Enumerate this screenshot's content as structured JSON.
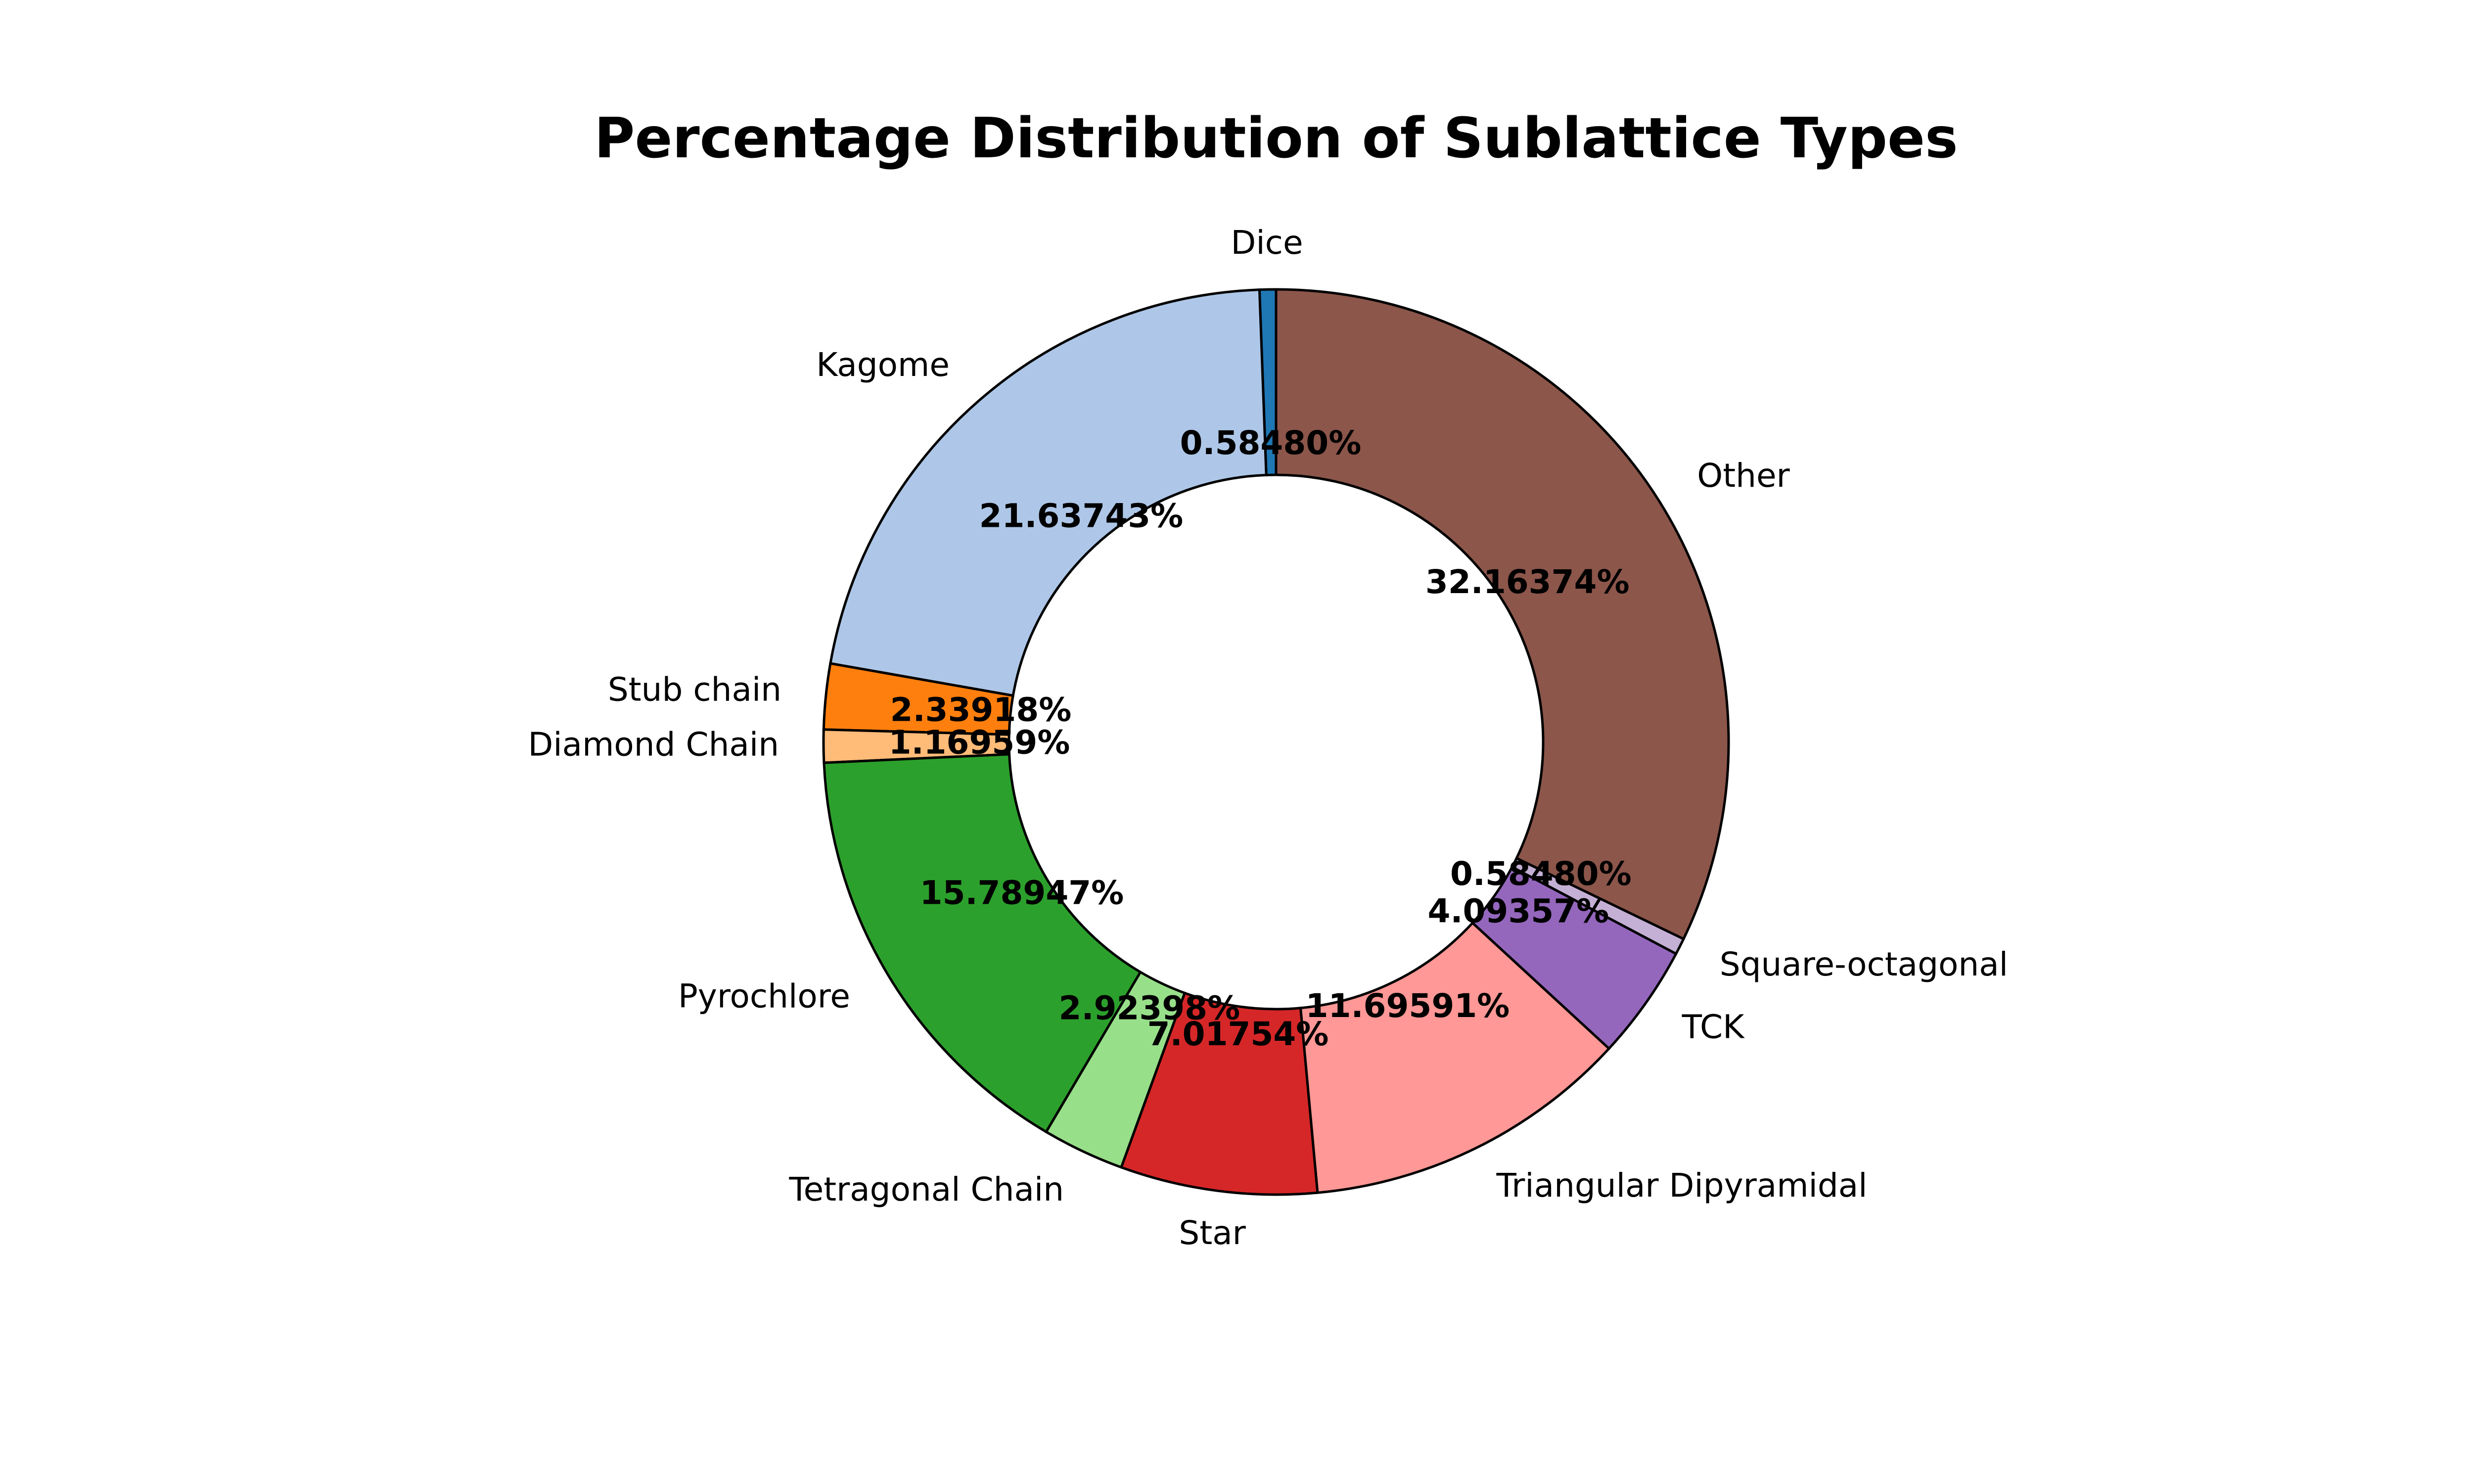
{
  "chart_data": {
    "type": "pie",
    "style": "donut",
    "title": "Percentage Distribution of Sublattice Types",
    "start_angle_deg": 90,
    "direction": "counterclockwise",
    "slices": [
      {
        "label": "Dice",
        "value": 0.5848,
        "pct_label": "0.58480%",
        "color": "#1f77b4"
      },
      {
        "label": "Kagome",
        "value": 21.63743,
        "pct_label": "21.63743%",
        "color": "#aec7e8"
      },
      {
        "label": "Stub chain",
        "value": 2.33918,
        "pct_label": "2.33918%",
        "color": "#ff7f0e"
      },
      {
        "label": "Diamond Chain",
        "value": 1.16959,
        "pct_label": "1.16959%",
        "color": "#ffbb78"
      },
      {
        "label": "Pyrochlore",
        "value": 15.78947,
        "pct_label": "15.78947%",
        "color": "#2ca02c"
      },
      {
        "label": "Tetragonal Chain",
        "value": 2.92398,
        "pct_label": "2.92398%",
        "color": "#98df8a"
      },
      {
        "label": "Star",
        "value": 7.01754,
        "pct_label": "7.01754%",
        "color": "#d62728"
      },
      {
        "label": "Triangular Dipyramidal",
        "value": 11.69591,
        "pct_label": "11.69591%",
        "color": "#ff9896"
      },
      {
        "label": "TCK",
        "value": 4.09357,
        "pct_label": "4.09357%",
        "color": "#9467bd"
      },
      {
        "label": "Square-octagonal",
        "value": 0.5848,
        "pct_label": "0.58480%",
        "color": "#c5b0d5"
      },
      {
        "label": "Other",
        "value": 32.16374,
        "pct_label": "32.16374%",
        "color": "#8c564b"
      }
    ]
  }
}
